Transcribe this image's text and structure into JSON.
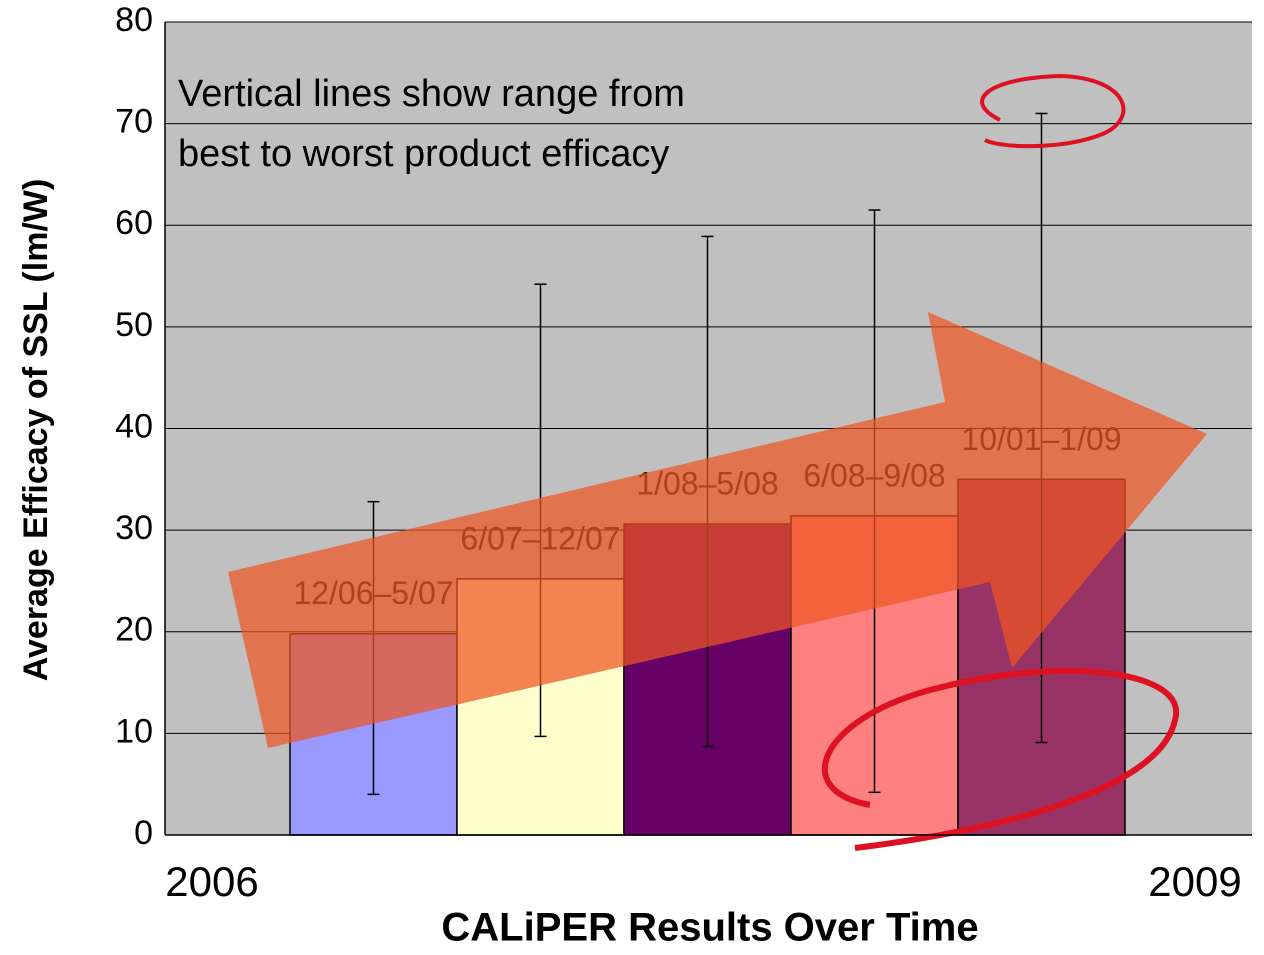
{
  "chart_data": {
    "type": "bar",
    "y_label": "Average Efficacy of SSL (lm/W)",
    "x_label": "CALiPER Results Over Time",
    "x_end_labels": [
      "2006",
      "2009"
    ],
    "annotation": [
      "Vertical lines show range from",
      "best to worst product efficacy"
    ],
    "categories": [
      "12/06–5/07",
      "6/07–12/07",
      "1/08–5/08",
      "6/08–9/08",
      "10/01–1/09"
    ],
    "values": [
      19.8,
      25.2,
      30.6,
      31.4,
      35.0
    ],
    "ranges": [
      [
        4.0,
        32.8
      ],
      [
        9.7,
        54.2
      ],
      [
        8.7,
        58.9
      ],
      [
        4.2,
        61.5
      ],
      [
        9.1,
        71.0
      ]
    ],
    "colors": [
      "#9999ff",
      "#ffffcc",
      "#660066",
      "#ff8080",
      "#993366"
    ],
    "ylim": [
      0,
      80
    ],
    "yticks": [
      0,
      10,
      20,
      30,
      40,
      50,
      60,
      70,
      80
    ],
    "grid": true
  }
}
